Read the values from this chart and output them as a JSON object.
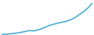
{
  "x": [
    0,
    1,
    2,
    3,
    4,
    5,
    6,
    7,
    8,
    9,
    10,
    11,
    12,
    13,
    14,
    15,
    16,
    17,
    18,
    19,
    20,
    21,
    22,
    23
  ],
  "y": [
    1000,
    1200,
    1500,
    1900,
    2400,
    3000,
    3700,
    4500,
    4200,
    4800,
    6000,
    7500,
    9000,
    10000,
    11000,
    11800,
    12500,
    13500,
    15000,
    17000,
    19500,
    22000,
    25000,
    29000
  ],
  "line_color": "#4badd4",
  "line_width": 1.2,
  "background_color": "#ffffff",
  "ylim": [
    500,
    32000
  ],
  "xlim": [
    -0.5,
    23.5
  ]
}
